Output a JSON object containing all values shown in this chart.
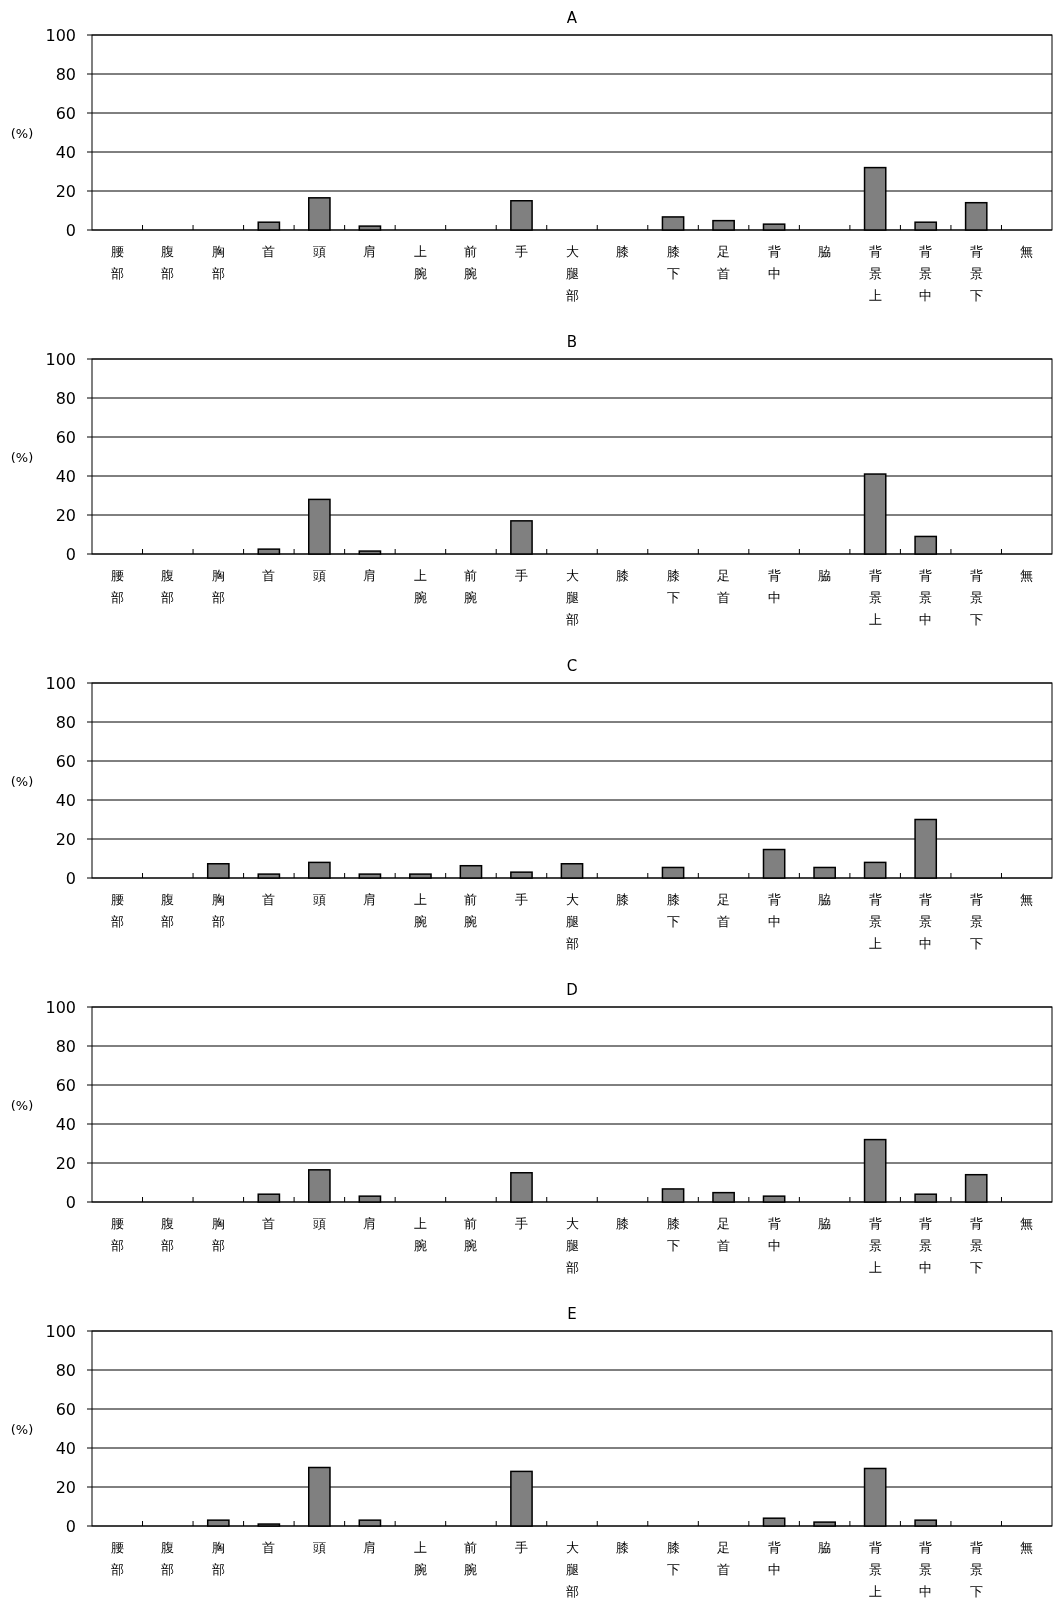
{
  "chart_data": [
    {
      "type": "bar",
      "title": "A",
      "ylabel": "(%)",
      "categories": [
        "腰部",
        "腹部",
        "胸部",
        "首",
        "頭",
        "肩",
        "上腕",
        "前腕",
        "手",
        "大腿部",
        "膝",
        "膝下",
        "足首",
        "背中",
        "脇",
        "背景上",
        "背景中",
        "背景下",
        "無"
      ],
      "values": [
        0,
        0,
        0,
        4,
        16.5,
        2,
        0,
        0,
        15,
        0,
        0,
        6.7,
        4.8,
        3,
        0,
        32,
        4,
        14,
        0
      ],
      "color": "#808080",
      "ylim": [
        0,
        100
      ],
      "yticks": [
        0,
        20,
        40,
        60,
        80,
        100
      ],
      "grid": "y"
    },
    {
      "type": "bar",
      "title": "B",
      "ylabel": "(%)",
      "categories": [
        "腰部",
        "腹部",
        "胸部",
        "首",
        "頭",
        "肩",
        "上腕",
        "前腕",
        "手",
        "大腿部",
        "膝",
        "膝下",
        "足首",
        "背中",
        "脇",
        "背景上",
        "背景中",
        "背景下",
        "無"
      ],
      "values": [
        0,
        0,
        0,
        2.5,
        28,
        1.5,
        0,
        0,
        17,
        0,
        0,
        0,
        0,
        0,
        0,
        41,
        9,
        0,
        0
      ],
      "color": "#808080",
      "ylim": [
        0,
        100
      ],
      "yticks": [
        0,
        20,
        40,
        60,
        80,
        100
      ],
      "grid": "y"
    },
    {
      "type": "bar",
      "title": "C",
      "ylabel": "(%)",
      "categories": [
        "腰部",
        "腹部",
        "胸部",
        "首",
        "頭",
        "肩",
        "上腕",
        "前腕",
        "手",
        "大腿部",
        "膝",
        "膝下",
        "足首",
        "背中",
        "脇",
        "背景上",
        "背景中",
        "背景下",
        "無"
      ],
      "values": [
        0,
        0,
        7.3,
        2,
        8,
        2,
        2,
        6.3,
        3,
        7.3,
        0,
        5.4,
        0,
        14.6,
        5.4,
        8,
        30,
        0,
        0
      ],
      "color": "#808080",
      "ylim": [
        0,
        100
      ],
      "yticks": [
        0,
        20,
        40,
        60,
        80,
        100
      ],
      "grid": "y"
    },
    {
      "type": "bar",
      "title": "D",
      "ylabel": "(%)",
      "categories": [
        "腰部",
        "腹部",
        "胸部",
        "首",
        "頭",
        "肩",
        "上腕",
        "前腕",
        "手",
        "大腿部",
        "膝",
        "膝下",
        "足首",
        "背中",
        "脇",
        "背景上",
        "背景中",
        "背景下",
        "無"
      ],
      "values": [
        0,
        0,
        0,
        4,
        16.5,
        3,
        0,
        0,
        15,
        0,
        0,
        6.7,
        4.8,
        3,
        0,
        32,
        4,
        14,
        0
      ],
      "color": "#808080",
      "ylim": [
        0,
        100
      ],
      "yticks": [
        0,
        20,
        40,
        60,
        80,
        100
      ],
      "grid": "y"
    },
    {
      "type": "bar",
      "title": "E",
      "ylabel": "(%)",
      "categories": [
        "腰部",
        "腹部",
        "胸部",
        "首",
        "頭",
        "肩",
        "上腕",
        "前腕",
        "手",
        "大腿部",
        "膝",
        "膝下",
        "足首",
        "背中",
        "脇",
        "背景上",
        "背景中",
        "背景下",
        "無"
      ],
      "values": [
        0,
        0,
        3,
        1,
        30,
        3,
        0,
        0,
        28,
        0,
        0,
        0,
        0,
        4,
        2,
        29.5,
        3,
        0,
        0
      ],
      "color": "#808080",
      "ylim": [
        0,
        100
      ],
      "yticks": [
        0,
        20,
        40,
        60,
        80,
        100
      ],
      "grid": "y"
    }
  ]
}
